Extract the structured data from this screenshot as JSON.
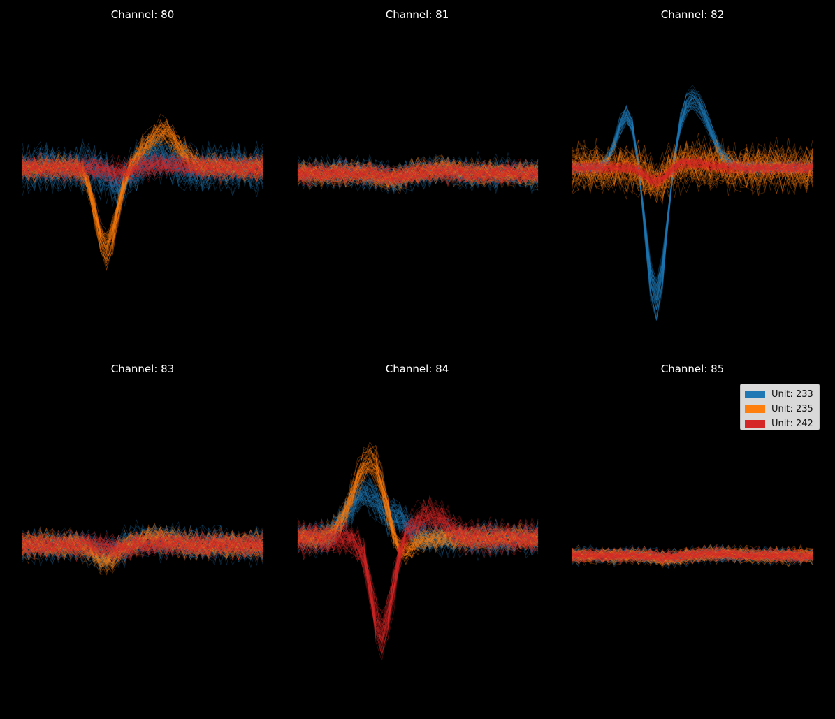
{
  "chart_data": {
    "type": "line",
    "description_layout": "2x3 grid of spike-waveform overlays",
    "colors": {
      "background": "#000000",
      "text": "#ffffff"
    },
    "units": [
      {
        "id": 233,
        "label": "Unit: 233",
        "color": "#1f77b4"
      },
      {
        "id": 235,
        "label": "Unit: 235",
        "color": "#ff7f0e"
      },
      {
        "id": 242,
        "label": "Unit: 242",
        "color": "#d62728"
      }
    ],
    "legend": {
      "placement": "upper-right of last panel"
    },
    "samples_per_waveform": 41,
    "panels": [
      {
        "channel": 80,
        "title": "Channel: 80",
        "ylim": [
          -9,
          9
        ],
        "mean_waveforms": {
          "233": {
            "trough_at": 0.4,
            "amp": -1.0,
            "peak_at": 0.55,
            "peak_amp": 0.5,
            "noise": 1.6
          },
          "235": {
            "trough_at": 0.35,
            "amp": -4.7,
            "peak_at": 0.58,
            "peak_amp": 2.1,
            "noise": 0.9
          },
          "242": {
            "trough_at": 0.4,
            "amp": -0.3,
            "peak_at": 0.6,
            "peak_amp": 0.2,
            "noise": 0.9
          }
        }
      },
      {
        "channel": 81,
        "title": "Channel: 81",
        "ylim": [
          -9,
          9
        ],
        "mean_waveforms": {
          "233": {
            "trough_at": 0.4,
            "amp": -0.3,
            "peak_at": 0.6,
            "peak_amp": 0.2,
            "noise": 1.1
          },
          "235": {
            "trough_at": 0.4,
            "amp": -0.3,
            "peak_at": 0.6,
            "peak_amp": 0.2,
            "noise": 0.9
          },
          "242": {
            "trough_at": 0.4,
            "amp": -0.2,
            "peak_at": 0.6,
            "peak_amp": 0.1,
            "noise": 0.8
          }
        }
      },
      {
        "channel": 82,
        "title": "Channel: 82",
        "ylim": [
          -9,
          9
        ],
        "mean_waveforms": {
          "233": {
            "trough_at": 0.35,
            "amp": -8.0,
            "peak_at": 0.5,
            "peak_amp": 4.0,
            "pre_peak_at": 0.23,
            "pre_peak_amp": 3.2,
            "noise": 0.5
          },
          "235": {
            "trough_at": 0.35,
            "amp": -0.8,
            "peak_at": 0.5,
            "peak_amp": 0.3,
            "noise": 1.7
          },
          "242": {
            "trough_at": 0.35,
            "amp": -0.8,
            "peak_at": 0.5,
            "peak_amp": 0.3,
            "noise": 0.5
          }
        }
      },
      {
        "channel": 83,
        "title": "Channel: 83",
        "ylim": [
          -9,
          9
        ],
        "mean_waveforms": {
          "233": {
            "trough_at": 0.35,
            "amp": -0.5,
            "peak_at": 0.55,
            "peak_amp": 0.3,
            "noise": 1.2
          },
          "235": {
            "trough_at": 0.35,
            "amp": -0.9,
            "peak_at": 0.55,
            "peak_amp": 0.4,
            "noise": 1.0
          },
          "242": {
            "trough_at": 0.4,
            "amp": -0.2,
            "peak_at": 0.6,
            "peak_amp": 0.1,
            "noise": 0.9
          }
        }
      },
      {
        "channel": 84,
        "title": "Channel: 84",
        "ylim": [
          -9,
          9
        ],
        "mean_waveforms": {
          "233": {
            "trough_at": 0.42,
            "amp": 0.8,
            "peak_at": 0.28,
            "peak_amp": 2.6,
            "noise": 1.2
          },
          "235": {
            "trough_at": 0.42,
            "amp": -1.5,
            "peak_at": 0.3,
            "peak_amp": 4.6,
            "noise": 0.9
          },
          "242": {
            "trough_at": 0.35,
            "amp": -5.5,
            "peak_at": 0.55,
            "peak_amp": 1.3,
            "noise": 1.2
          }
        }
      },
      {
        "channel": 85,
        "title": "Channel: 85",
        "ylim": [
          -9,
          9
        ],
        "mean_waveforms": {
          "233": {
            "trough_at": 0.4,
            "amp": -0.2,
            "peak_at": 0.6,
            "peak_amp": 0.1,
            "noise": 0.6
          },
          "235": {
            "trough_at": 0.4,
            "amp": -0.2,
            "peak_at": 0.6,
            "peak_amp": 0.1,
            "noise": 0.6
          },
          "242": {
            "trough_at": 0.4,
            "amp": -0.1,
            "peak_at": 0.6,
            "peak_amp": 0.1,
            "noise": 0.5
          }
        }
      }
    ]
  }
}
